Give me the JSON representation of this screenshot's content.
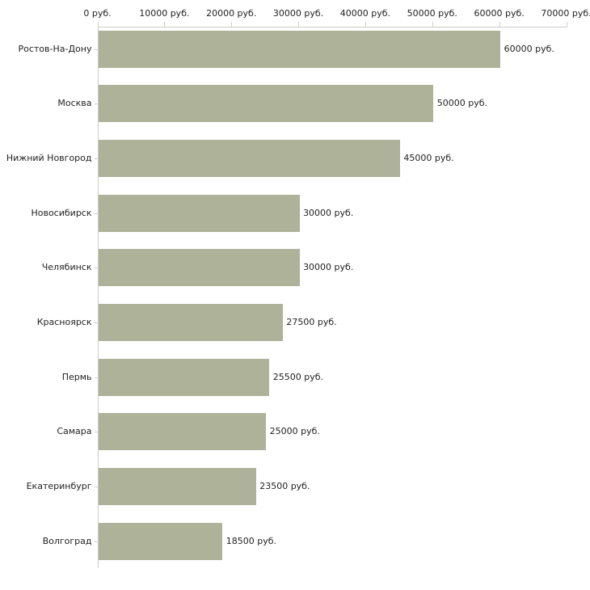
{
  "chart_data": {
    "type": "bar",
    "orientation": "horizontal",
    "title": "",
    "xlabel": "",
    "ylabel": "",
    "unit": "руб.",
    "categories": [
      "Ростов-На-Дону",
      "Москва",
      "Нижний Новгород",
      "Новосибирск",
      "Челябинск",
      "Красноярск",
      "Пермь",
      "Самара",
      "Екатеринбург",
      "Волгоград"
    ],
    "values": [
      60000,
      50000,
      45000,
      30000,
      30000,
      27500,
      25500,
      25000,
      23500,
      18500
    ],
    "bar_labels": [
      "60000 руб.",
      "50000 руб.",
      "45000 руб.",
      "30000 руб.",
      "30000 руб.",
      "27500 руб.",
      "25500 руб.",
      "25000 руб.",
      "23500 руб.",
      "18500 руб."
    ],
    "xlim": [
      0,
      70000
    ],
    "x_ticks": [
      0,
      10000,
      20000,
      30000,
      40000,
      50000,
      60000,
      70000
    ],
    "x_tick_labels": [
      "0 руб.",
      "10000 руб.",
      "20000 руб.",
      "30000 руб.",
      "40000 руб.",
      "50000 руб.",
      "60000 руб.",
      "70000 руб."
    ],
    "grid": false,
    "legend": null,
    "colors": {
      "bar": "#adb299",
      "axis_line": "#cccccc",
      "tick_mark": "#cfd1ba",
      "text": "#222222",
      "background": "#ffffff"
    }
  }
}
